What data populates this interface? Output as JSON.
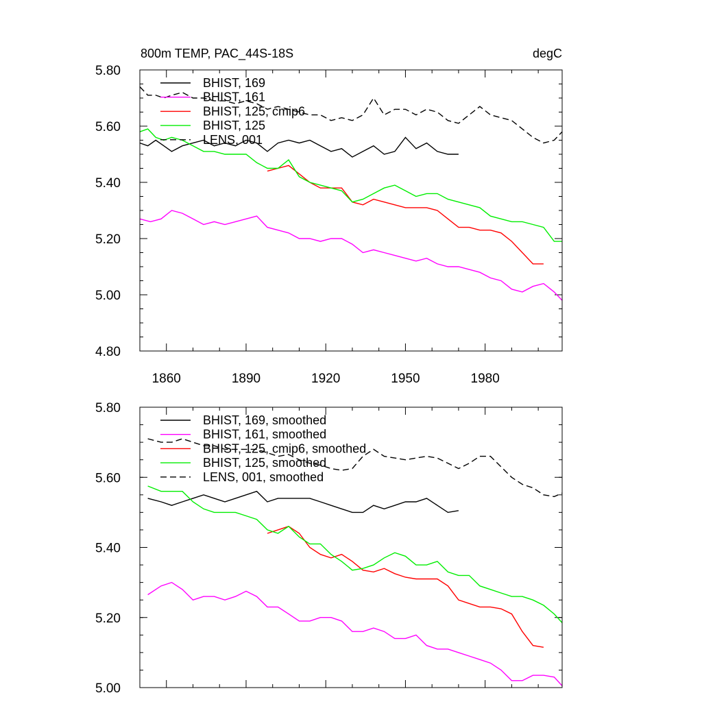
{
  "chart_data": [
    {
      "type": "line",
      "title": "800m TEMP, PAC_44S-18S",
      "units": "degC",
      "xlim": [
        1850,
        2009
      ],
      "ylim": [
        4.8,
        5.8
      ],
      "yticks": [
        "4.80",
        "5.00",
        "5.20",
        "5.40",
        "5.60",
        "5.80"
      ],
      "xticks": [
        "1860",
        "1890",
        "1920",
        "1950",
        "1980"
      ],
      "legend_position": "top-left",
      "series": [
        {
          "name": "BHIST, 169",
          "color": "#000000",
          "dash": "solid",
          "x": [
            1850,
            1853,
            1856,
            1859,
            1862,
            1866,
            1870,
            1874,
            1878,
            1882,
            1886,
            1890,
            1894,
            1898,
            1902,
            1906,
            1910,
            1914,
            1918,
            1922,
            1926,
            1930,
            1934,
            1938,
            1942,
            1946,
            1950,
            1954,
            1958,
            1962,
            1966,
            1970
          ],
          "y": [
            5.54,
            5.53,
            5.55,
            5.53,
            5.51,
            5.53,
            5.54,
            5.55,
            5.53,
            5.54,
            5.53,
            5.55,
            5.54,
            5.51,
            5.54,
            5.55,
            5.54,
            5.55,
            5.53,
            5.51,
            5.52,
            5.49,
            5.51,
            5.53,
            5.5,
            5.51,
            5.56,
            5.52,
            5.54,
            5.51,
            5.5,
            5.5
          ]
        },
        {
          "name": "BHIST, 161",
          "color": "#ff00ff",
          "dash": "solid",
          "x": [
            1850,
            1854,
            1858,
            1862,
            1866,
            1870,
            1874,
            1878,
            1882,
            1886,
            1890,
            1894,
            1898,
            1902,
            1906,
            1910,
            1914,
            1918,
            1922,
            1926,
            1930,
            1934,
            1938,
            1942,
            1946,
            1950,
            1954,
            1958,
            1962,
            1966,
            1970,
            1974,
            1978,
            1982,
            1986,
            1990,
            1994,
            1998,
            2002,
            2006,
            2009
          ],
          "y": [
            5.27,
            5.26,
            5.27,
            5.3,
            5.29,
            5.27,
            5.25,
            5.26,
            5.25,
            5.26,
            5.27,
            5.28,
            5.24,
            5.23,
            5.22,
            5.2,
            5.2,
            5.19,
            5.2,
            5.2,
            5.18,
            5.15,
            5.16,
            5.15,
            5.14,
            5.13,
            5.12,
            5.13,
            5.11,
            5.1,
            5.1,
            5.09,
            5.08,
            5.06,
            5.05,
            5.02,
            5.01,
            5.03,
            5.04,
            5.01,
            4.98
          ]
        },
        {
          "name": "BHIST, 125, cmip6",
          "color": "#ff0000",
          "dash": "solid",
          "x": [
            1898,
            1902,
            1906,
            1910,
            1914,
            1918,
            1922,
            1926,
            1930,
            1934,
            1938,
            1942,
            1946,
            1950,
            1954,
            1958,
            1962,
            1966,
            1970,
            1974,
            1978,
            1982,
            1986,
            1990,
            1994,
            1998,
            2002
          ],
          "y": [
            5.44,
            5.45,
            5.46,
            5.43,
            5.4,
            5.38,
            5.38,
            5.38,
            5.33,
            5.32,
            5.34,
            5.33,
            5.32,
            5.31,
            5.31,
            5.31,
            5.3,
            5.27,
            5.24,
            5.24,
            5.23,
            5.23,
            5.22,
            5.19,
            5.15,
            5.11,
            5.11
          ]
        },
        {
          "name": "BHIST, 125",
          "color": "#00ee00",
          "dash": "solid",
          "x": [
            1850,
            1853,
            1856,
            1859,
            1862,
            1866,
            1870,
            1874,
            1878,
            1882,
            1886,
            1890,
            1894,
            1898,
            1902,
            1906,
            1910,
            1914,
            1918,
            1922,
            1926,
            1930,
            1934,
            1938,
            1942,
            1946,
            1950,
            1954,
            1958,
            1962,
            1966,
            1970,
            1974,
            1978,
            1982,
            1986,
            1990,
            1994,
            1998,
            2002,
            2006,
            2009
          ],
          "y": [
            5.58,
            5.59,
            5.56,
            5.55,
            5.56,
            5.55,
            5.53,
            5.51,
            5.51,
            5.5,
            5.5,
            5.5,
            5.47,
            5.45,
            5.45,
            5.48,
            5.42,
            5.4,
            5.39,
            5.38,
            5.37,
            5.33,
            5.34,
            5.36,
            5.38,
            5.39,
            5.37,
            5.35,
            5.36,
            5.36,
            5.34,
            5.33,
            5.32,
            5.31,
            5.28,
            5.27,
            5.26,
            5.26,
            5.25,
            5.24,
            5.19,
            5.19
          ]
        },
        {
          "name": "LENS, 001",
          "color": "#000000",
          "dash": "dashed",
          "x": [
            1850,
            1853,
            1856,
            1859,
            1862,
            1866,
            1870,
            1874,
            1878,
            1882,
            1886,
            1890,
            1894,
            1898,
            1902,
            1906,
            1910,
            1914,
            1918,
            1922,
            1926,
            1930,
            1934,
            1938,
            1942,
            1946,
            1950,
            1954,
            1958,
            1962,
            1966,
            1970,
            1974,
            1978,
            1982,
            1986,
            1990,
            1994,
            1998,
            2002,
            2006,
            2009
          ],
          "y": [
            5.74,
            5.71,
            5.71,
            5.7,
            5.71,
            5.72,
            5.7,
            5.7,
            5.69,
            5.69,
            5.68,
            5.69,
            5.68,
            5.66,
            5.67,
            5.66,
            5.65,
            5.64,
            5.64,
            5.62,
            5.63,
            5.62,
            5.64,
            5.7,
            5.64,
            5.66,
            5.66,
            5.64,
            5.66,
            5.65,
            5.62,
            5.61,
            5.64,
            5.67,
            5.64,
            5.63,
            5.62,
            5.59,
            5.56,
            5.54,
            5.55,
            5.58
          ]
        }
      ]
    },
    {
      "type": "line",
      "title": "",
      "units": "",
      "xlim": [
        1850,
        2009
      ],
      "ylim": [
        5.0,
        5.8
      ],
      "yticks": [
        "5.00",
        "5.20",
        "5.40",
        "5.60",
        "5.80"
      ],
      "xticks": [],
      "legend_position": "top-left",
      "series": [
        {
          "name": "BHIST, 169, smoothed",
          "color": "#000000",
          "dash": "solid",
          "x": [
            1853,
            1858,
            1862,
            1866,
            1870,
            1874,
            1878,
            1882,
            1886,
            1890,
            1894,
            1898,
            1902,
            1906,
            1910,
            1914,
            1918,
            1922,
            1926,
            1930,
            1934,
            1938,
            1942,
            1946,
            1950,
            1954,
            1958,
            1962,
            1966,
            1970
          ],
          "y": [
            5.54,
            5.53,
            5.52,
            5.53,
            5.54,
            5.55,
            5.54,
            5.53,
            5.54,
            5.55,
            5.56,
            5.53,
            5.54,
            5.54,
            5.54,
            5.54,
            5.53,
            5.52,
            5.51,
            5.5,
            5.5,
            5.52,
            5.51,
            5.52,
            5.53,
            5.53,
            5.54,
            5.52,
            5.5,
            5.505
          ]
        },
        {
          "name": "BHIST, 161, smoothed",
          "color": "#ff00ff",
          "dash": "solid",
          "x": [
            1853,
            1858,
            1862,
            1866,
            1870,
            1874,
            1878,
            1882,
            1886,
            1890,
            1894,
            1898,
            1902,
            1906,
            1910,
            1914,
            1918,
            1922,
            1926,
            1930,
            1934,
            1938,
            1942,
            1946,
            1950,
            1954,
            1958,
            1962,
            1966,
            1970,
            1974,
            1978,
            1982,
            1986,
            1990,
            1994,
            1998,
            2002,
            2006,
            2009
          ],
          "y": [
            5.265,
            5.29,
            5.3,
            5.28,
            5.25,
            5.26,
            5.26,
            5.25,
            5.26,
            5.275,
            5.26,
            5.23,
            5.23,
            5.21,
            5.19,
            5.19,
            5.2,
            5.2,
            5.19,
            5.16,
            5.16,
            5.17,
            5.16,
            5.14,
            5.14,
            5.15,
            5.12,
            5.11,
            5.11,
            5.1,
            5.09,
            5.08,
            5.07,
            5.05,
            5.02,
            5.02,
            5.035,
            5.035,
            5.03,
            5.005
          ]
        },
        {
          "name": "BHIST, 125, cmip6, smoothed",
          "color": "#ff0000",
          "dash": "solid",
          "x": [
            1898,
            1902,
            1906,
            1910,
            1914,
            1918,
            1922,
            1926,
            1930,
            1934,
            1938,
            1942,
            1946,
            1950,
            1954,
            1958,
            1962,
            1966,
            1970,
            1974,
            1978,
            1982,
            1986,
            1990,
            1994,
            1998,
            2002
          ],
          "y": [
            5.44,
            5.45,
            5.46,
            5.44,
            5.4,
            5.38,
            5.37,
            5.38,
            5.36,
            5.335,
            5.33,
            5.34,
            5.325,
            5.315,
            5.31,
            5.31,
            5.31,
            5.29,
            5.25,
            5.24,
            5.23,
            5.23,
            5.225,
            5.21,
            5.16,
            5.12,
            5.115
          ]
        },
        {
          "name": "BHIST, 125, smoothed",
          "color": "#00ee00",
          "dash": "solid",
          "x": [
            1853,
            1858,
            1862,
            1866,
            1870,
            1874,
            1878,
            1882,
            1886,
            1890,
            1894,
            1898,
            1902,
            1906,
            1910,
            1914,
            1918,
            1922,
            1926,
            1930,
            1934,
            1938,
            1942,
            1946,
            1950,
            1954,
            1958,
            1962,
            1966,
            1970,
            1974,
            1978,
            1982,
            1986,
            1990,
            1994,
            1998,
            2002,
            2006,
            2009
          ],
          "y": [
            5.575,
            5.56,
            5.56,
            5.56,
            5.53,
            5.51,
            5.5,
            5.5,
            5.5,
            5.49,
            5.48,
            5.45,
            5.44,
            5.46,
            5.43,
            5.41,
            5.41,
            5.38,
            5.36,
            5.335,
            5.34,
            5.35,
            5.37,
            5.385,
            5.375,
            5.35,
            5.35,
            5.36,
            5.33,
            5.32,
            5.32,
            5.29,
            5.28,
            5.27,
            5.26,
            5.26,
            5.25,
            5.235,
            5.21,
            5.185
          ]
        },
        {
          "name": "LENS, 001, smoothed",
          "color": "#000000",
          "dash": "dashed",
          "x": [
            1853,
            1858,
            1862,
            1866,
            1870,
            1874,
            1878,
            1882,
            1886,
            1890,
            1894,
            1898,
            1902,
            1906,
            1910,
            1914,
            1918,
            1922,
            1926,
            1930,
            1934,
            1938,
            1942,
            1946,
            1950,
            1954,
            1958,
            1962,
            1966,
            1970,
            1974,
            1978,
            1982,
            1986,
            1990,
            1994,
            1998,
            2002,
            2006,
            2009
          ],
          "y": [
            5.71,
            5.7,
            5.7,
            5.71,
            5.7,
            5.69,
            5.69,
            5.68,
            5.68,
            5.68,
            5.68,
            5.67,
            5.66,
            5.665,
            5.65,
            5.64,
            5.635,
            5.625,
            5.62,
            5.625,
            5.66,
            5.68,
            5.66,
            5.655,
            5.65,
            5.655,
            5.66,
            5.655,
            5.64,
            5.625,
            5.64,
            5.66,
            5.66,
            5.63,
            5.6,
            5.58,
            5.57,
            5.55,
            5.545,
            5.555
          ]
        }
      ]
    }
  ]
}
